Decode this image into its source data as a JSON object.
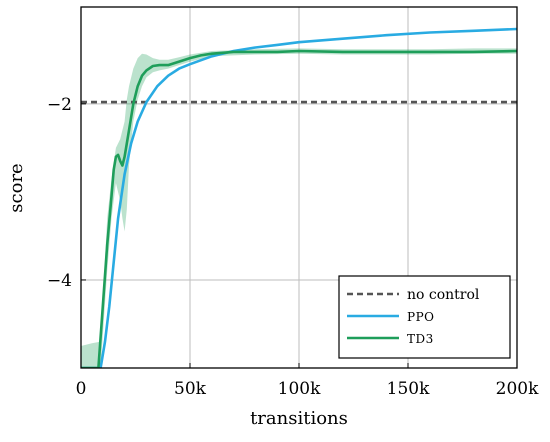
{
  "chart_data": {
    "type": "line",
    "xlabel": "transitions",
    "ylabel": "score",
    "xlim": [
      0,
      200000
    ],
    "ylim": [
      -5.0,
      -0.9
    ],
    "grid": true,
    "legend_position": "bottom-right",
    "x_ticks": [
      {
        "value": 0,
        "label": "0"
      },
      {
        "value": 50000,
        "label": "50k"
      },
      {
        "value": 100000,
        "label": "100k"
      },
      {
        "value": 150000,
        "label": "150k"
      },
      {
        "value": 200000,
        "label": "200k"
      }
    ],
    "y_ticks": [
      {
        "value": -2,
        "label": "−2"
      },
      {
        "value": -4,
        "label": "−4"
      }
    ],
    "series": [
      {
        "name": "no control",
        "style": "dashed",
        "color": "#555555",
        "x": [
          0,
          200000
        ],
        "y": [
          -1.98,
          -1.98
        ]
      },
      {
        "name": "PPO",
        "style": "solid",
        "color": "#29abe2",
        "x": [
          0,
          9000,
          11000,
          13000,
          15000,
          17000,
          20000,
          23000,
          26000,
          30000,
          35000,
          40000,
          45000,
          50000,
          60000,
          70000,
          80000,
          90000,
          100000,
          120000,
          140000,
          160000,
          180000,
          200000
        ],
        "y": [
          -5.0,
          -5.0,
          -4.7,
          -4.3,
          -3.8,
          -3.3,
          -2.8,
          -2.45,
          -2.2,
          -1.98,
          -1.8,
          -1.68,
          -1.6,
          -1.55,
          -1.46,
          -1.4,
          -1.36,
          -1.33,
          -1.3,
          -1.26,
          -1.22,
          -1.19,
          -1.17,
          -1.15
        ]
      },
      {
        "name": "TD3",
        "style": "solid",
        "color": "#1e9e5a",
        "x": [
          0,
          8000,
          10000,
          12000,
          14000,
          15000,
          16000,
          17000,
          18000,
          19000,
          20000,
          22000,
          24000,
          26000,
          28000,
          30000,
          33000,
          36000,
          40000,
          45000,
          50000,
          55000,
          60000,
          70000,
          80000,
          90000,
          100000,
          120000,
          140000,
          160000,
          180000,
          200000
        ],
        "y": [
          -5.0,
          -5.0,
          -4.3,
          -3.6,
          -3.05,
          -2.75,
          -2.6,
          -2.58,
          -2.65,
          -2.7,
          -2.6,
          -2.3,
          -2.0,
          -1.8,
          -1.68,
          -1.62,
          -1.57,
          -1.56,
          -1.56,
          -1.52,
          -1.48,
          -1.45,
          -1.43,
          -1.41,
          -1.41,
          -1.41,
          -1.4,
          -1.41,
          -1.41,
          -1.41,
          -1.41,
          -1.4
        ]
      },
      {
        "name": "",
        "style": "band",
        "color": "#1e9e5a",
        "x": [
          0,
          5000,
          9000,
          12000,
          14000,
          16000,
          18000,
          19000,
          20000,
          21000,
          22000,
          24000,
          26000,
          28000,
          30000,
          33000,
          36000,
          40000,
          45000,
          50000,
          60000,
          80000,
          100000,
          120000,
          140000,
          160000,
          180000,
          200000
        ],
        "lower": [
          -5.0,
          -5.0,
          -5.0,
          -3.9,
          -3.3,
          -2.9,
          -3.1,
          -3.3,
          -3.45,
          -3.2,
          -2.7,
          -2.2,
          -1.95,
          -1.8,
          -1.7,
          -1.64,
          -1.62,
          -1.6,
          -1.56,
          -1.52,
          -1.46,
          -1.44,
          -1.43,
          -1.44,
          -1.44,
          -1.44,
          -1.43,
          -1.43
        ],
        "upper": [
          -4.75,
          -4.72,
          -4.7,
          -3.3,
          -2.85,
          -2.5,
          -2.4,
          -2.3,
          -2.2,
          -1.95,
          -1.8,
          -1.6,
          -1.48,
          -1.43,
          -1.44,
          -1.48,
          -1.5,
          -1.5,
          -1.47,
          -1.44,
          -1.4,
          -1.38,
          -1.37,
          -1.38,
          -1.38,
          -1.38,
          -1.37,
          -1.37
        ]
      }
    ],
    "legend": [
      {
        "label": "no control",
        "style": "dashed",
        "color": "#555555"
      },
      {
        "label": "PPO",
        "style": "solid",
        "color": "#29abe2"
      },
      {
        "label": "TD3",
        "style": "solid",
        "color": "#1e9e5a"
      }
    ]
  }
}
